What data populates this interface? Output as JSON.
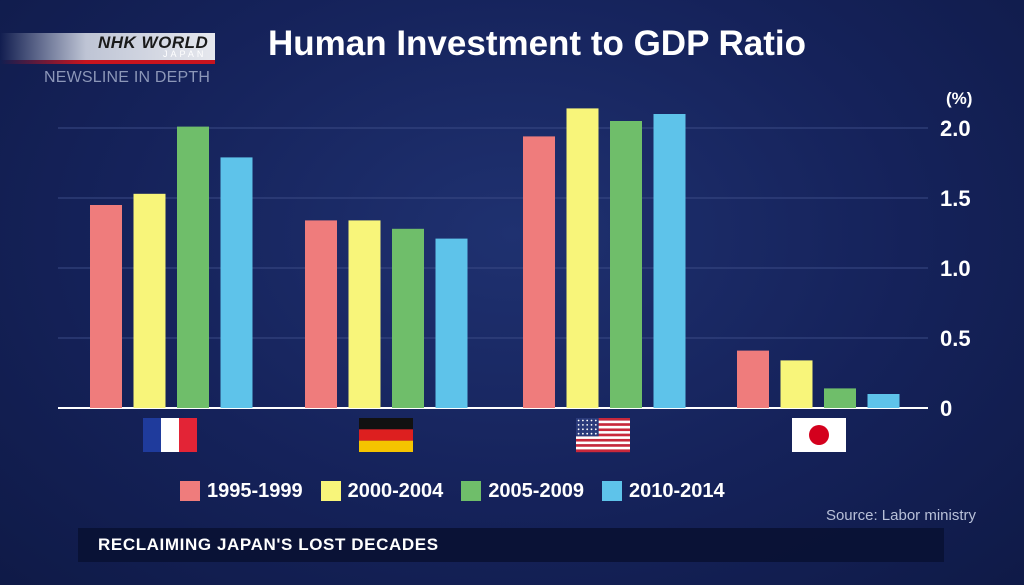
{
  "branding": {
    "logo": "NHK WORLD",
    "logo_sub": "JAPAN",
    "program": "NEWSLINE IN DEPTH"
  },
  "banner": "RECLAIMING JAPAN'S LOST DECADES",
  "source": "Source: Labor ministry",
  "colors": {
    "background": "#172660",
    "series": [
      "#ef7c7c",
      "#f8f57a",
      "#6fbe6a",
      "#5ec3ea"
    ]
  },
  "chart_data": {
    "type": "bar",
    "title": "Human Investment to GDP Ratio",
    "ylabel": "(%)",
    "ylim": [
      0,
      2.0
    ],
    "yticks": [
      "0",
      "0.5",
      "1.0",
      "1.5",
      "2.0"
    ],
    "grid": true,
    "y_axis_side": "right",
    "legend_position": "bottom",
    "categories": [
      "France",
      "Germany",
      "United States",
      "Japan"
    ],
    "category_icons": [
      "flag-france-icon",
      "flag-germany-icon",
      "flag-usa-icon",
      "flag-japan-icon"
    ],
    "series": [
      {
        "name": "1995-1999",
        "values": [
          1.45,
          1.34,
          1.94,
          0.41
        ]
      },
      {
        "name": "2000-2004",
        "values": [
          1.53,
          1.34,
          2.14,
          0.34
        ]
      },
      {
        "name": "2005-2009",
        "values": [
          2.01,
          1.28,
          2.05,
          0.14
        ]
      },
      {
        "name": "2010-2014",
        "values": [
          1.79,
          1.21,
          2.1,
          0.1
        ]
      }
    ]
  }
}
